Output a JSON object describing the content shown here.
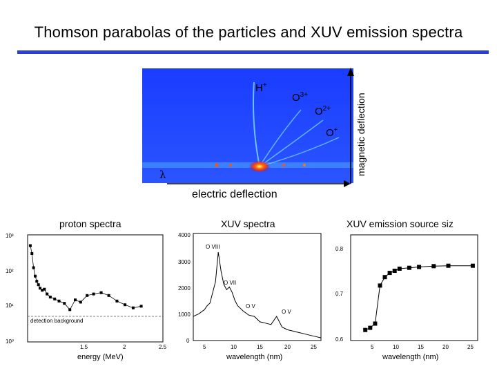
{
  "title": "Thomson parabolas of the particles and XUV emission spectra",
  "image": {
    "ions": [
      {
        "base": "H",
        "charge": "+"
      },
      {
        "base": "O",
        "charge": "3+"
      },
      {
        "base": "O",
        "charge": "2+"
      },
      {
        "base": "O",
        "charge": "+"
      }
    ],
    "lambda": "λ",
    "electric_deflection": "electric deflection",
    "magnetic_deflection": "magnetic deflection"
  },
  "panels": {
    "proton": {
      "label": "proton spectra",
      "ytick_labels": [
        "10³",
        "10²",
        "10¹",
        "10⁰"
      ],
      "xtick_labels": [
        "1.5",
        "2",
        "2.5"
      ],
      "xlabel": "energy (MeV)",
      "annotation": "detection background"
    },
    "xuv": {
      "label": "XUV spectra",
      "ytick_labels": [
        "4000",
        "3000",
        "2000",
        "1000",
        "0"
      ],
      "xtick_labels": [
        "5",
        "10",
        "15",
        "20",
        "25"
      ],
      "xlabel": "wavelength (nm)",
      "lines": [
        "O VIII",
        "O VII",
        "O V",
        "O V"
      ]
    },
    "source": {
      "label": "XUV emission source siz",
      "ytick_labels": [
        "0.8",
        "0.7",
        "0.6"
      ],
      "xtick_labels": [
        "5",
        "10",
        "15",
        "20",
        "25"
      ],
      "xlabel": "wavelength (nm)"
    }
  },
  "chart_data": [
    {
      "type": "scatter",
      "title": "proton spectra",
      "xlabel": "energy (MeV)",
      "ylabel": "",
      "log_y": true,
      "ylim": [
        1,
        1000
      ],
      "xlim": [
        0,
        2.5
      ],
      "grid": false,
      "x": [
        0.05,
        0.08,
        0.11,
        0.14,
        0.17,
        0.2,
        0.23,
        0.27,
        0.31,
        0.36,
        0.42,
        0.5,
        0.58,
        0.68,
        0.78,
        0.88,
        0.98,
        1.1,
        1.22,
        1.36,
        1.5,
        1.65,
        1.8,
        1.95,
        2.1
      ],
      "y": [
        500,
        300,
        120,
        70,
        50,
        40,
        32,
        28,
        30,
        22,
        18,
        16,
        14,
        12,
        8,
        15,
        13,
        20,
        22,
        24,
        20,
        14,
        11,
        9,
        10
      ],
      "annotation": "detection background",
      "background_level": 5
    },
    {
      "type": "line",
      "title": "XUV spectra",
      "xlabel": "wavelength (nm)",
      "ylabel": "",
      "xlim": [
        2,
        25
      ],
      "ylim": [
        0,
        4000
      ],
      "grid": false,
      "x": [
        2,
        3,
        4,
        4.5,
        5,
        5.5,
        6,
        6.5,
        7,
        7.5,
        8,
        8.5,
        9,
        9.5,
        10,
        11,
        12,
        13,
        14,
        15,
        16,
        17,
        18,
        19,
        20,
        21,
        22,
        23,
        24,
        25
      ],
      "y": [
        900,
        1000,
        1150,
        1300,
        1400,
        1800,
        2200,
        3300,
        2600,
        2100,
        1900,
        2000,
        1800,
        1500,
        1300,
        1100,
        950,
        900,
        700,
        650,
        600,
        900,
        500,
        400,
        350,
        300,
        250,
        200,
        150,
        100
      ],
      "annotations": [
        "O VIII",
        "O VII",
        "O V",
        "O V"
      ]
    },
    {
      "type": "line",
      "title": "XUV emission source siz",
      "xlabel": "wavelength (nm)",
      "ylabel": "",
      "xlim": [
        0,
        26
      ],
      "ylim": [
        0.6,
        0.85
      ],
      "grid": false,
      "x": [
        3,
        4,
        5,
        6,
        7,
        8,
        9,
        10,
        12,
        14,
        17,
        20,
        25
      ],
      "y": [
        0.625,
        0.63,
        0.64,
        0.73,
        0.75,
        0.76,
        0.765,
        0.77,
        0.772,
        0.774,
        0.776,
        0.777,
        0.777
      ]
    }
  ]
}
